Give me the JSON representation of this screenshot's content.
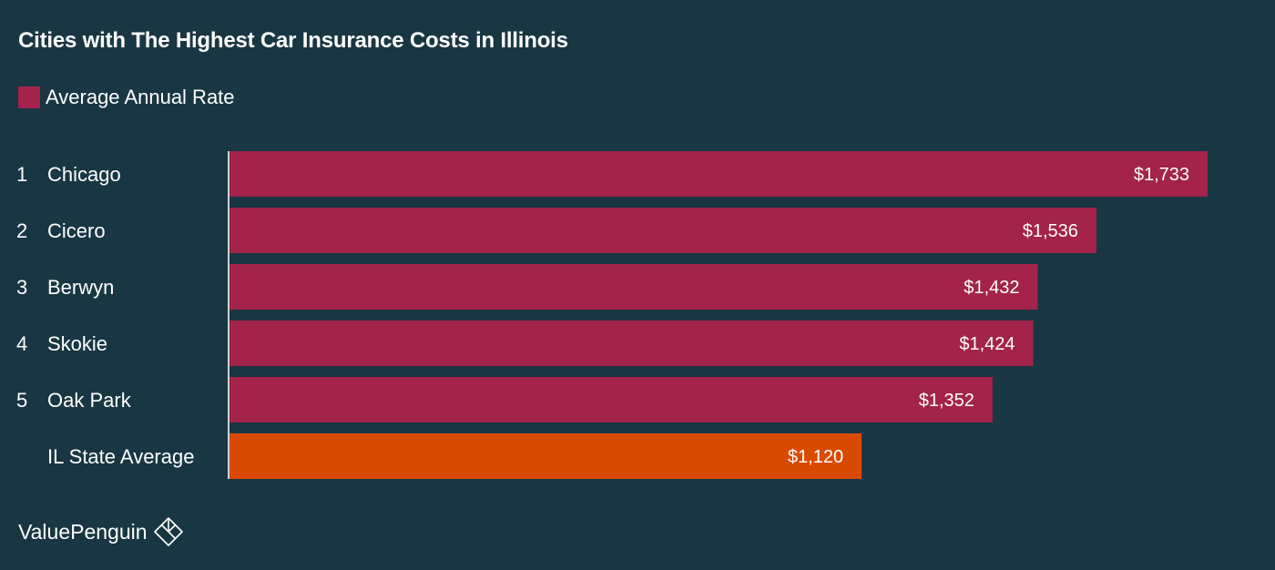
{
  "chart_data": {
    "type": "bar",
    "orientation": "horizontal",
    "title": "Cities with The Highest Car Insurance Costs in Illinois",
    "legend": {
      "label": "Average Annual Rate",
      "color": "#a3234a",
      "placement": "top-left"
    },
    "categories": [
      "Chicago",
      "Cicero",
      "Berwyn",
      "Skokie",
      "Oak Park",
      "IL State Average"
    ],
    "ranks": [
      "1",
      "2",
      "3",
      "4",
      "5",
      ""
    ],
    "values": [
      1733,
      1536,
      1432,
      1424,
      1352,
      1120
    ],
    "value_labels": [
      "$1,733",
      "$1,536",
      "$1,432",
      "$1,424",
      "$1,352",
      "$1,120"
    ],
    "bar_colors": [
      "#a3234a",
      "#a3234a",
      "#a3234a",
      "#a3234a",
      "#a3234a",
      "#d94a01"
    ],
    "xlim": [
      0,
      1733
    ],
    "grid": false
  },
  "brand": {
    "name": "ValuePenguin",
    "icon": "valuepenguin-logo-icon"
  },
  "colors": {
    "background": "#193643",
    "axis_line": "#c9d1d5"
  }
}
